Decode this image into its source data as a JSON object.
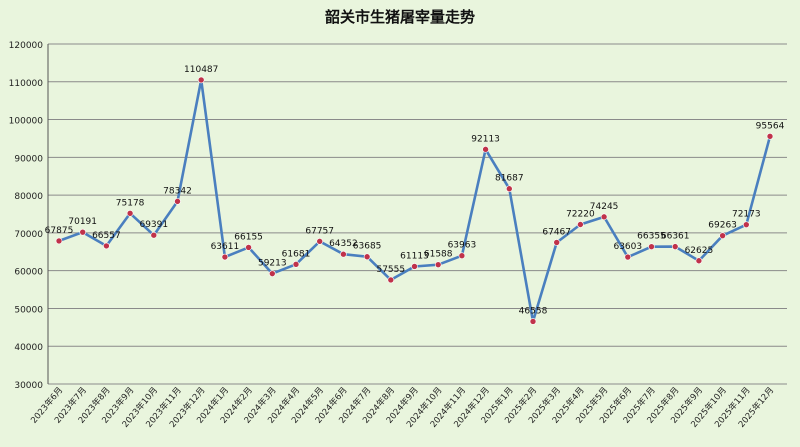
{
  "chart_data": {
    "type": "line",
    "title": "韶关市生猪屠宰量走势",
    "xlabel": "",
    "ylabel": "",
    "ylim": [
      30000,
      120000
    ],
    "yticks": [
      30000,
      40000,
      50000,
      60000,
      70000,
      80000,
      90000,
      100000,
      110000,
      120000
    ],
    "grid": true,
    "legend": "none",
    "categories": [
      "2023年6月",
      "2023年7月",
      "2023年8月",
      "2023年9月",
      "2023年10月",
      "2023年11月",
      "2023年12月",
      "2024年1月",
      "2024年2月",
      "2024年3月",
      "2024年4月",
      "2024年5月",
      "2024年6月",
      "2024年7月",
      "2024年8月",
      "2024年9月",
      "2024年10月",
      "2024年11月",
      "2024年12月",
      "2025年1月",
      "2025年2月",
      "2025年3月",
      "2025年4月",
      "2025年5月",
      "2025年6月",
      "2025年7月",
      "2025年8月",
      "2025年9月",
      "2025年10月",
      "2025年11月",
      "2025年12月"
    ],
    "series": [
      {
        "values": [
          67875,
          70191,
          66557,
          75178,
          69391,
          78342,
          110487,
          63611,
          66155,
          59213,
          61681,
          67757,
          64352,
          63685,
          57555,
          61113,
          61588,
          63963,
          92113,
          81687,
          46558,
          67467,
          72220,
          74245,
          63603,
          66355,
          66361,
          62625,
          69263,
          72173,
          95564
        ],
        "line_color": "#4a7fbf",
        "marker_color": "#c0324a"
      }
    ]
  }
}
